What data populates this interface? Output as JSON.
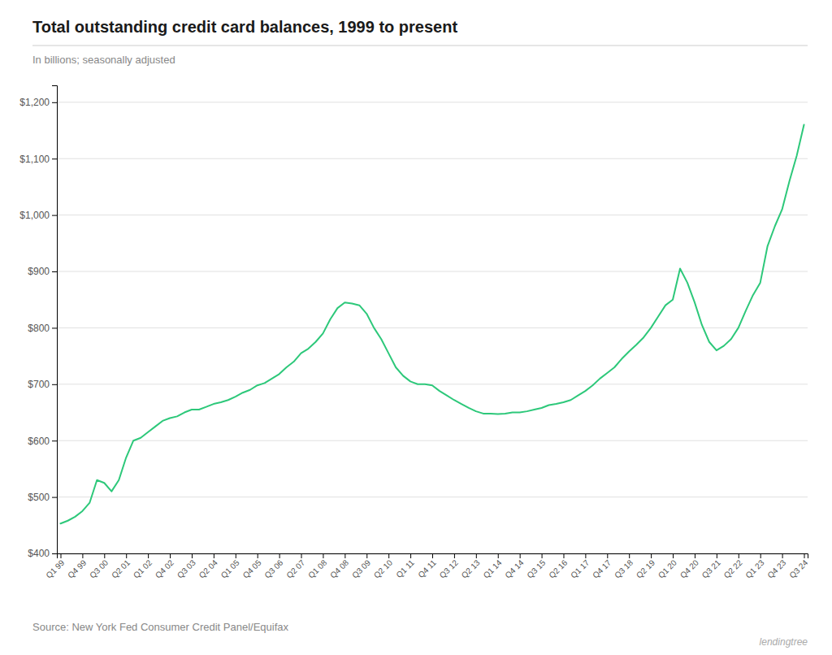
{
  "chart_data": {
    "type": "line",
    "title": "Total outstanding credit card balances, 1999 to present",
    "subtitle": "In billions; seasonally adjusted",
    "source": "Source: New York Fed Consumer Credit Panel/Equifax",
    "annotations": [
      "lendingtree"
    ],
    "color": "#2DC87A",
    "grid": true,
    "categories": [
      "Q1 99",
      null,
      null,
      "Q4 99",
      null,
      null,
      "Q3 00",
      null,
      null,
      "Q2 01",
      null,
      null,
      "Q1 02",
      null,
      null,
      "Q4 02",
      null,
      null,
      "Q3 03",
      null,
      null,
      "Q2 04",
      null,
      null,
      "Q1 05",
      null,
      null,
      "Q4 05",
      null,
      null,
      "Q3 06",
      null,
      null,
      "Q2 07",
      null,
      null,
      "Q1 08",
      null,
      null,
      "Q4 08",
      null,
      null,
      "Q3 09",
      null,
      null,
      "Q2 10",
      null,
      null,
      "Q1 11",
      null,
      null,
      "Q4 11",
      null,
      null,
      "Q3 12",
      null,
      null,
      "Q2 13",
      null,
      null,
      "Q1 14",
      null,
      null,
      "Q4 14",
      null,
      null,
      "Q3 15",
      null,
      null,
      "Q2 16",
      null,
      null,
      "Q1 17",
      null,
      null,
      "Q4 17",
      null,
      null,
      "Q3 18",
      null,
      null,
      "Q2 19",
      null,
      null,
      "Q1 20",
      null,
      null,
      "Q4 20",
      null,
      null,
      "Q3 21",
      null,
      null,
      "Q2 22",
      null,
      null,
      "Q1 23",
      null,
      null,
      "Q4 23",
      null,
      null,
      "Q3 24"
    ],
    "values": [
      453,
      458,
      465,
      475,
      490,
      530,
      525,
      510,
      530,
      570,
      600,
      605,
      615,
      625,
      635,
      640,
      643,
      650,
      655,
      655,
      660,
      665,
      668,
      672,
      678,
      685,
      690,
      698,
      702,
      710,
      718,
      730,
      740,
      755,
      763,
      775,
      790,
      815,
      835,
      845,
      843,
      840,
      825,
      800,
      780,
      755,
      730,
      715,
      705,
      700,
      700,
      698,
      688,
      680,
      672,
      665,
      658,
      652,
      648,
      648,
      647,
      648,
      650,
      650,
      652,
      655,
      658,
      663,
      665,
      668,
      672,
      680,
      688,
      698,
      710,
      720,
      730,
      745,
      758,
      770,
      783,
      800,
      820,
      840,
      850,
      905,
      880,
      845,
      805,
      775,
      760,
      768,
      780,
      800,
      830,
      858,
      880,
      945,
      980,
      1010,
      1060,
      1105,
      1160
    ],
    "ylim": [
      400,
      1230
    ],
    "yticks": [
      {
        "value": 400,
        "label": "$400"
      },
      {
        "value": 500,
        "label": "$500"
      },
      {
        "value": 600,
        "label": "$600"
      },
      {
        "value": 700,
        "label": "$700"
      },
      {
        "value": 800,
        "label": "$800"
      },
      {
        "value": 900,
        "label": "$900"
      },
      {
        "value": 1000,
        "label": "$1,000"
      },
      {
        "value": 1100,
        "label": "$1,100"
      },
      {
        "value": 1200,
        "label": "$1,200"
      }
    ]
  }
}
